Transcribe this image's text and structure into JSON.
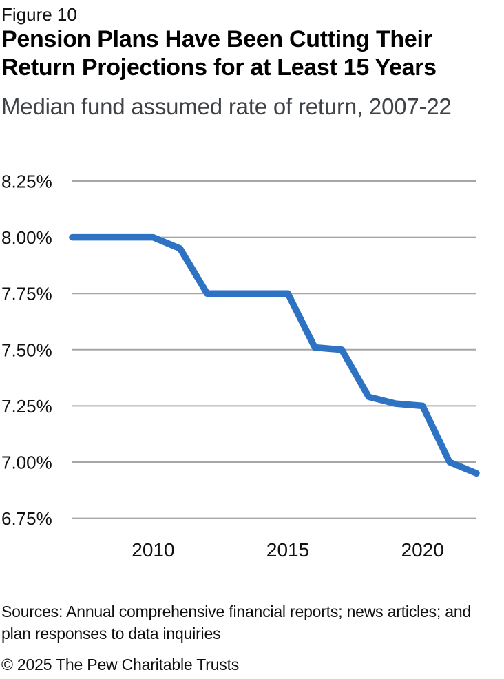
{
  "figure_label": "Figure 10",
  "title": "Pension Plans Have Been Cutting Their Return Projections for at Least 15 Years",
  "subtitle": "Median fund assumed rate of return, 2007-22",
  "sources": "Sources: Annual comprehensive financial reports; news articles; and\nplan responses to data inquiries",
  "copyright": "© 2025 The Pew Charitable Trusts",
  "chart_data": {
    "type": "line",
    "title": "Pension Plans Have Been Cutting Their Return Projections for at Least 15 Years",
    "subtitle": "Median fund assumed rate of return, 2007-22",
    "series_name": "Median fund assumed rate of return",
    "x": [
      2007,
      2008,
      2009,
      2010,
      2011,
      2012,
      2013,
      2014,
      2015,
      2016,
      2017,
      2018,
      2019,
      2020,
      2021,
      2022
    ],
    "values": [
      8.0,
      8.0,
      8.0,
      8.0,
      7.95,
      7.75,
      7.75,
      7.75,
      7.75,
      7.51,
      7.5,
      7.29,
      7.26,
      7.25,
      7.0,
      6.95
    ],
    "ylim": [
      6.75,
      8.25
    ],
    "y_ticks": [
      8.25,
      8.0,
      7.75,
      7.5,
      7.25,
      7.0,
      6.75
    ],
    "y_tick_suffix": "%",
    "x_ticks": [
      2010,
      2015,
      2020
    ],
    "grid": true,
    "legend": "none",
    "colors": {
      "line": "#2e72c4",
      "grid": "#a6a6a6",
      "tick_text": "#101113"
    }
  }
}
